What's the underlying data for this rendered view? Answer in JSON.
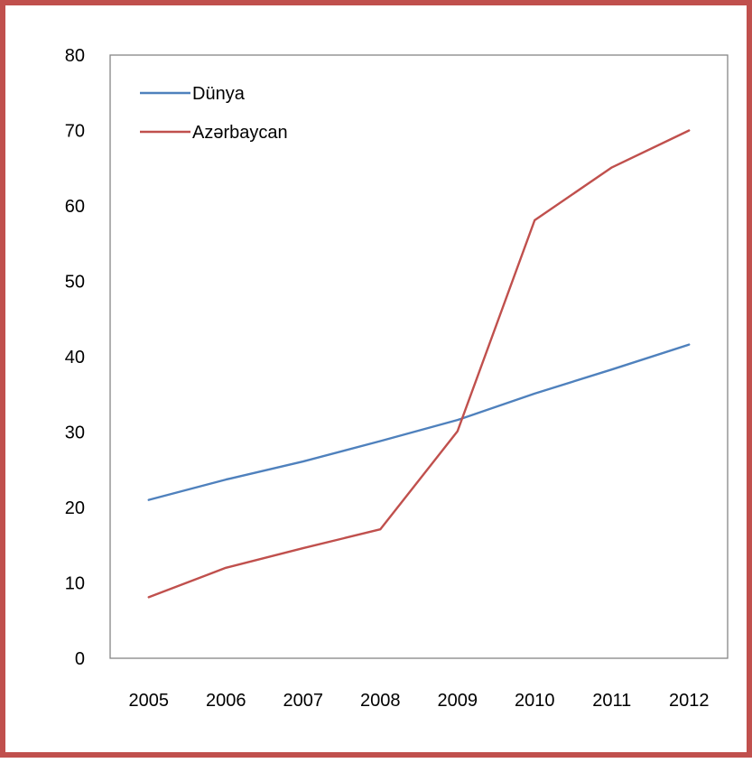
{
  "chart_data": {
    "type": "line",
    "title": "",
    "xlabel": "",
    "ylabel": "",
    "categories": [
      "2005",
      "2006",
      "2007",
      "2008",
      "2009",
      "2010",
      "2011",
      "2012"
    ],
    "ylim": [
      0,
      80
    ],
    "yticks": [
      "0",
      "10",
      "20",
      "30",
      "40",
      "50",
      "60",
      "70",
      "80"
    ],
    "grid": false,
    "legend_position": "top-left",
    "series": [
      {
        "name": "Dünya",
        "color": "#4f81bd",
        "values": [
          21,
          23.7,
          26.1,
          28.8,
          31.6,
          35.1,
          38.3,
          41.6
        ]
      },
      {
        "name": "Azərbaycan",
        "color": "#c0504d",
        "values": [
          8.1,
          12,
          14.6,
          17.1,
          30.1,
          58.1,
          65.1,
          70
        ]
      }
    ]
  }
}
